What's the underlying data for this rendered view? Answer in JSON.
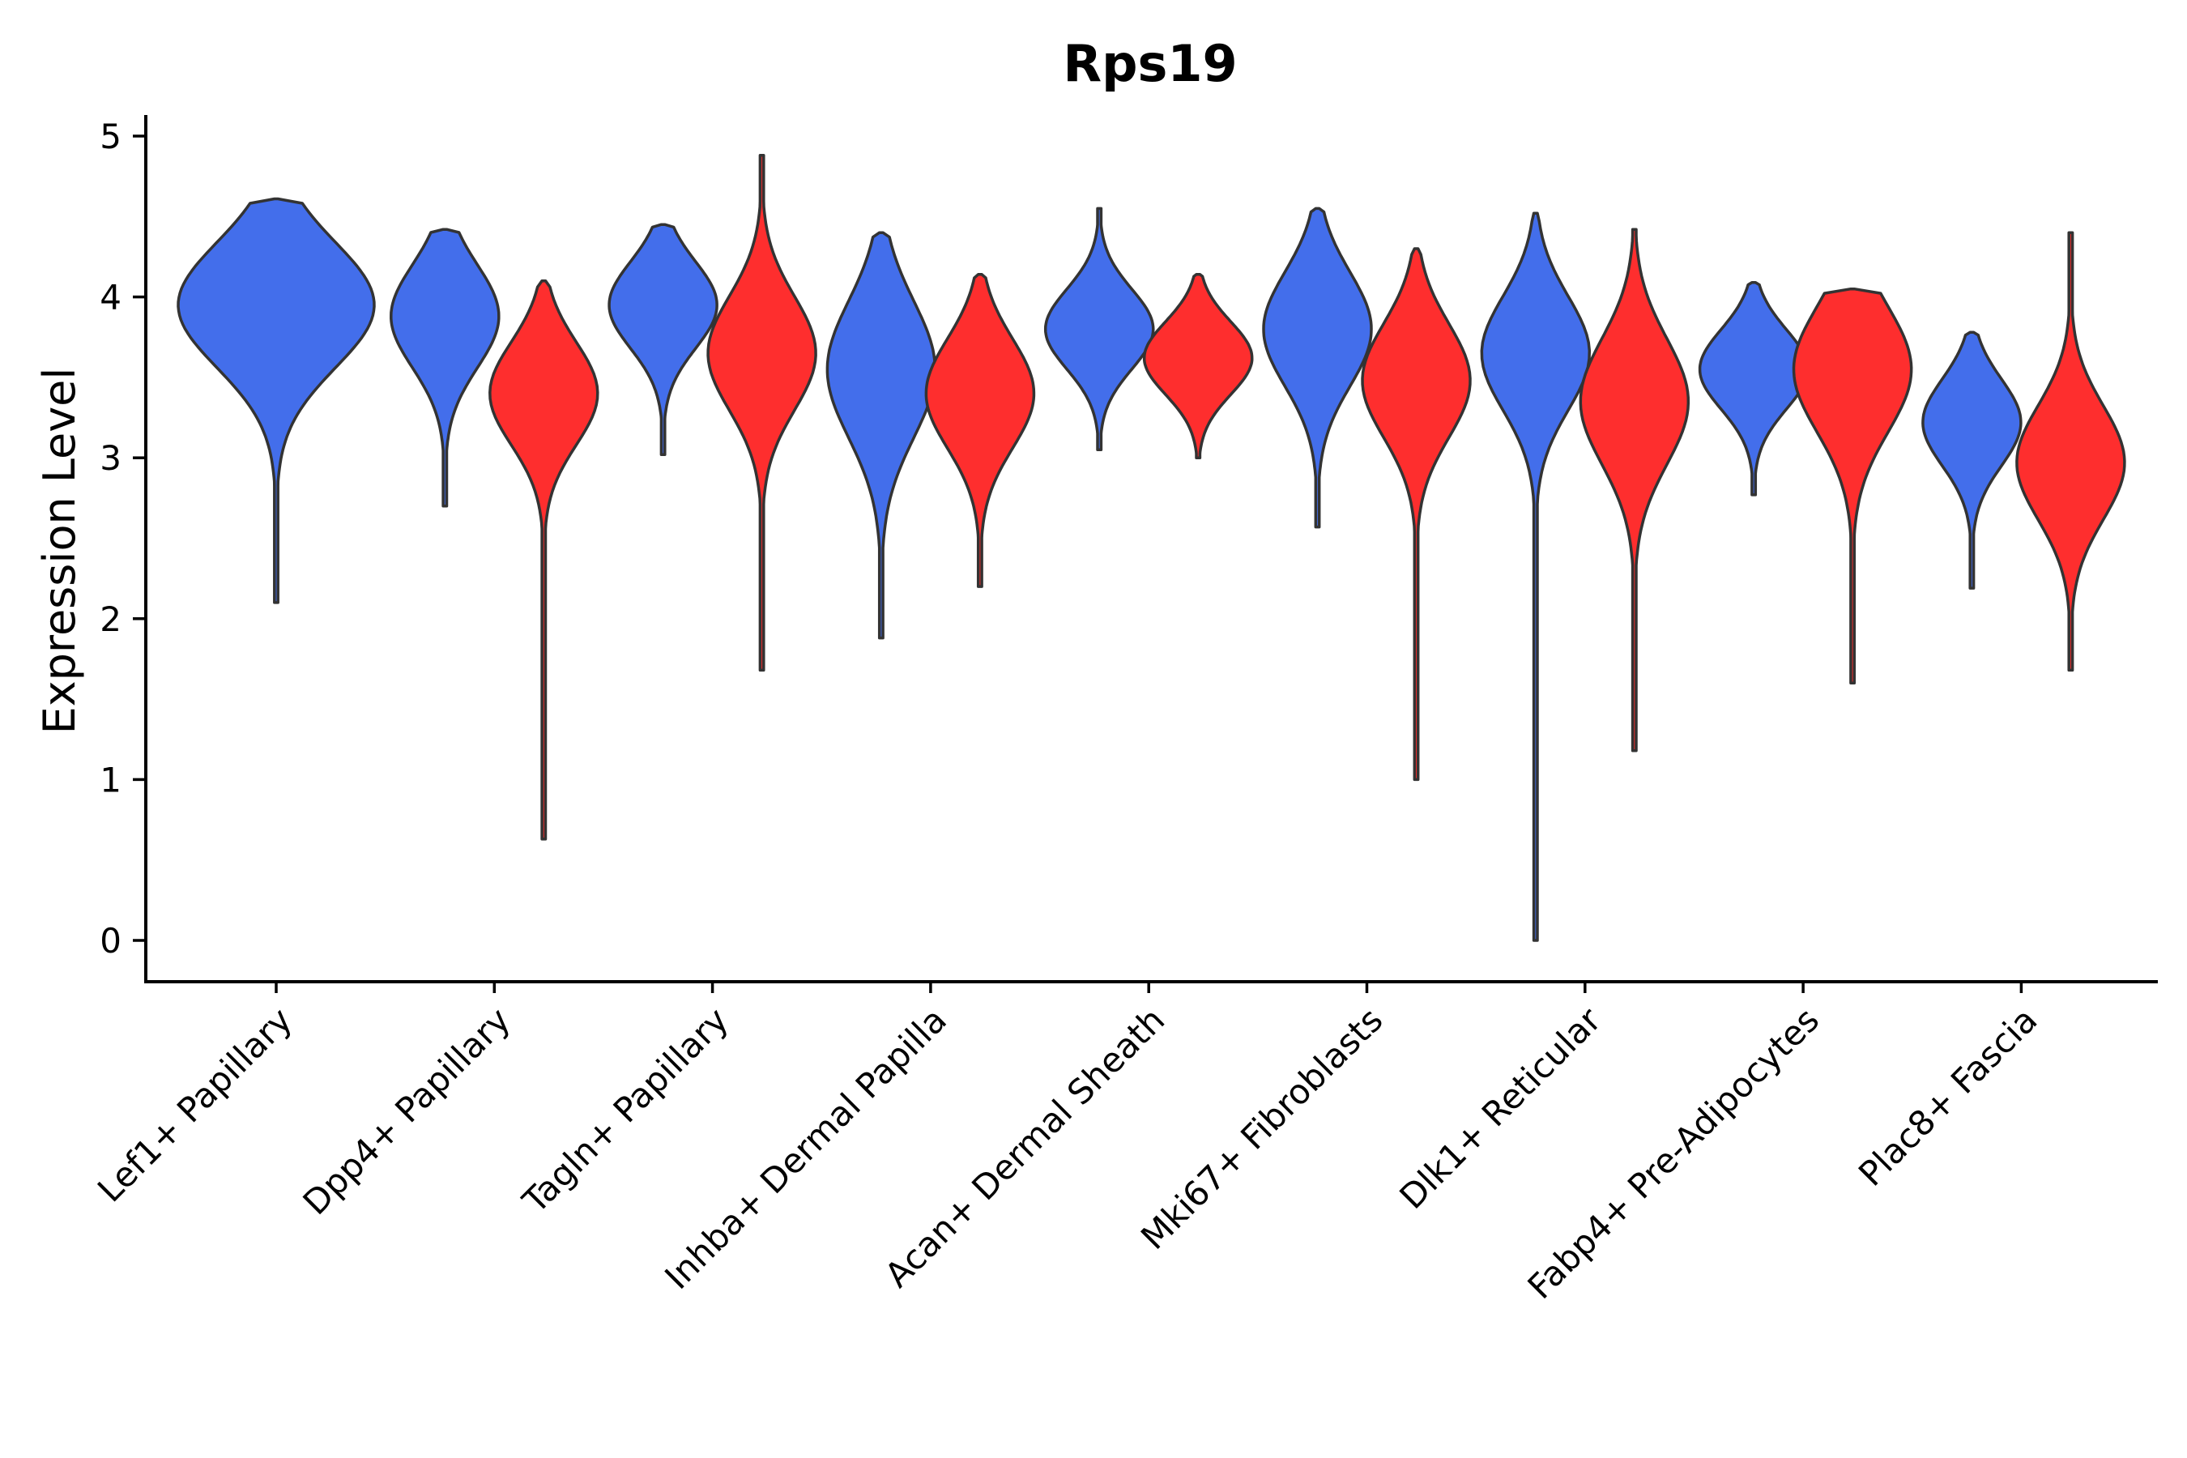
{
  "chart_data": {
    "type": "violin",
    "title": "Rps19",
    "xlabel": "",
    "ylabel": "Expression Level",
    "ylim": [
      -0.25,
      5.12
    ],
    "yticks": [
      0,
      1,
      2,
      3,
      4,
      5
    ],
    "grid": false,
    "legend": "none",
    "categories": [
      "Lef1+ Papillary",
      "Dpp4+ Papillary",
      "Tagln+ Papillary",
      "Inhba+ Dermal Papilla",
      "Acan+ Dermal Sheath",
      "Mki67+ Fibroblasts",
      "Dlk1+ Reticular",
      "Fabp4+ Pre-Adipocytes",
      "Plac8+ Fascia"
    ],
    "series": [
      {
        "name": "group-blue",
        "color": "#436EEB",
        "violins": [
          {
            "category": "Lef1+ Papillary",
            "max": 4.61,
            "min": 2.1,
            "mode": 3.95,
            "spread": 0.55,
            "relative_width": 1.0
          },
          {
            "category": "Dpp4+ Papillary",
            "max": 4.42,
            "min": 2.7,
            "mode": 3.88,
            "spread": 0.45,
            "relative_width": 0.55
          },
          {
            "category": "Tagln+ Papillary",
            "max": 4.45,
            "min": 3.02,
            "mode": 3.95,
            "spread": 0.38,
            "relative_width": 0.55
          },
          {
            "category": "Inhba+ Dermal Papilla",
            "max": 4.4,
            "min": 1.88,
            "mode": 3.55,
            "spread": 0.6,
            "relative_width": 0.55
          },
          {
            "category": "Acan+ Dermal Sheath",
            "max": 4.55,
            "min": 3.05,
            "mode": 3.8,
            "spread": 0.35,
            "relative_width": 0.55
          },
          {
            "category": "Mki67+ Fibroblasts",
            "max": 4.55,
            "min": 2.57,
            "mode": 3.8,
            "spread": 0.5,
            "relative_width": 0.55
          },
          {
            "category": "Dlk1+ Reticular",
            "max": 4.52,
            "min": 0.0,
            "mode": 3.65,
            "spread": 0.5,
            "relative_width": 0.55
          },
          {
            "category": "Fabp4+ Pre-Adipocytes",
            "max": 4.09,
            "min": 2.77,
            "mode": 3.55,
            "spread": 0.35,
            "relative_width": 0.55
          },
          {
            "category": "Plac8+ Fascia",
            "max": 3.78,
            "min": 2.19,
            "mode": 3.22,
            "spread": 0.38,
            "relative_width": 0.5
          }
        ]
      },
      {
        "name": "group-red",
        "color": "#FE2E2E",
        "violins": [
          {
            "category": "Dpp4+ Papillary",
            "max": 4.1,
            "min": 0.63,
            "mode": 3.4,
            "spread": 0.45,
            "relative_width": 0.55
          },
          {
            "category": "Tagln+ Papillary",
            "max": 4.88,
            "min": 1.68,
            "mode": 3.65,
            "spread": 0.5,
            "relative_width": 0.55
          },
          {
            "category": "Inhba+ Dermal Papilla",
            "max": 4.14,
            "min": 2.2,
            "mode": 3.4,
            "spread": 0.48,
            "relative_width": 0.55
          },
          {
            "category": "Acan+ Dermal Sheath",
            "max": 4.14,
            "min": 3.0,
            "mode": 3.62,
            "spread": 0.32,
            "relative_width": 0.55
          },
          {
            "category": "Mki67+ Fibroblasts",
            "max": 4.3,
            "min": 1.0,
            "mode": 3.48,
            "spread": 0.5,
            "relative_width": 0.55
          },
          {
            "category": "Dlk1+ Reticular",
            "max": 4.42,
            "min": 1.18,
            "mode": 3.35,
            "spread": 0.55,
            "relative_width": 0.55
          },
          {
            "category": "Fabp4+ Pre-Adipocytes",
            "max": 4.05,
            "min": 1.6,
            "mode": 3.55,
            "spread": 0.55,
            "relative_width": 0.6
          },
          {
            "category": "Plac8+ Fascia",
            "max": 4.4,
            "min": 1.68,
            "mode": 2.97,
            "spread": 0.5,
            "relative_width": 0.55
          }
        ]
      }
    ]
  }
}
